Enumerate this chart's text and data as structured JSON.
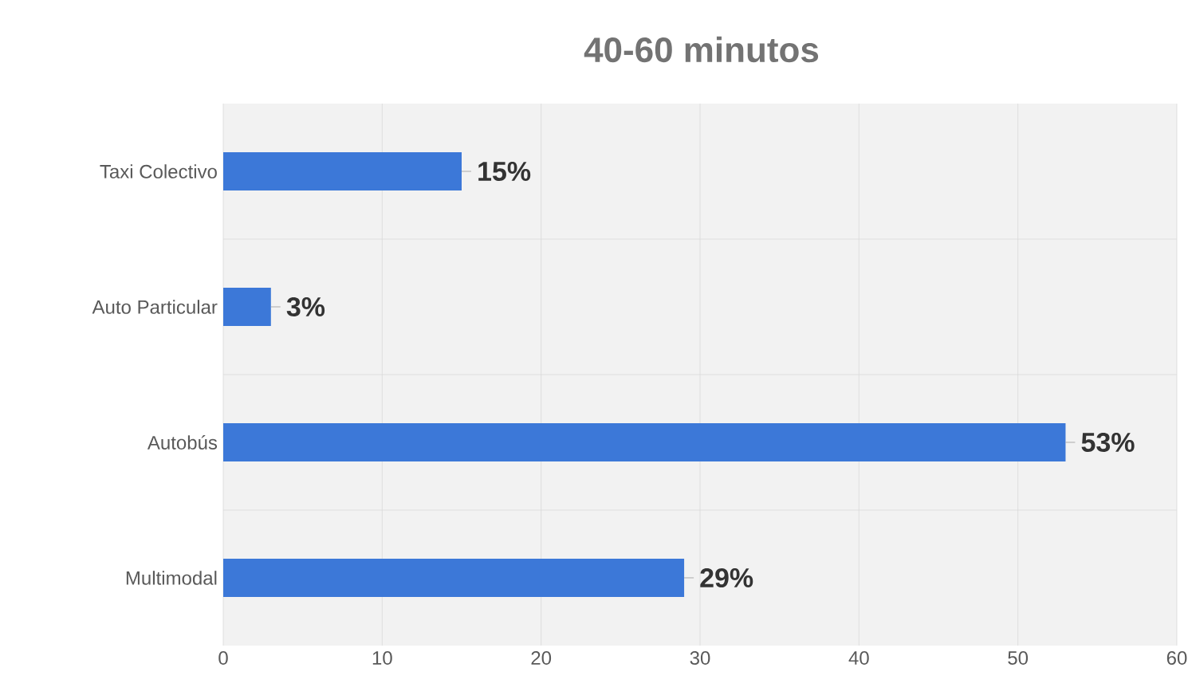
{
  "chart_data": {
    "type": "bar",
    "orientation": "horizontal",
    "title": "40-60 minutos",
    "categories": [
      "Taxi Colectivo",
      "Auto Particular",
      "Autobús",
      "Multimodal"
    ],
    "values": [
      15,
      3,
      53,
      29
    ],
    "value_labels": [
      "15%",
      "3%",
      "53%",
      "29%"
    ],
    "color": "#3c78d8",
    "xlim": [
      0,
      60
    ],
    "xticks": [
      0,
      10,
      20,
      30,
      40,
      50,
      60
    ],
    "grid": true
  }
}
